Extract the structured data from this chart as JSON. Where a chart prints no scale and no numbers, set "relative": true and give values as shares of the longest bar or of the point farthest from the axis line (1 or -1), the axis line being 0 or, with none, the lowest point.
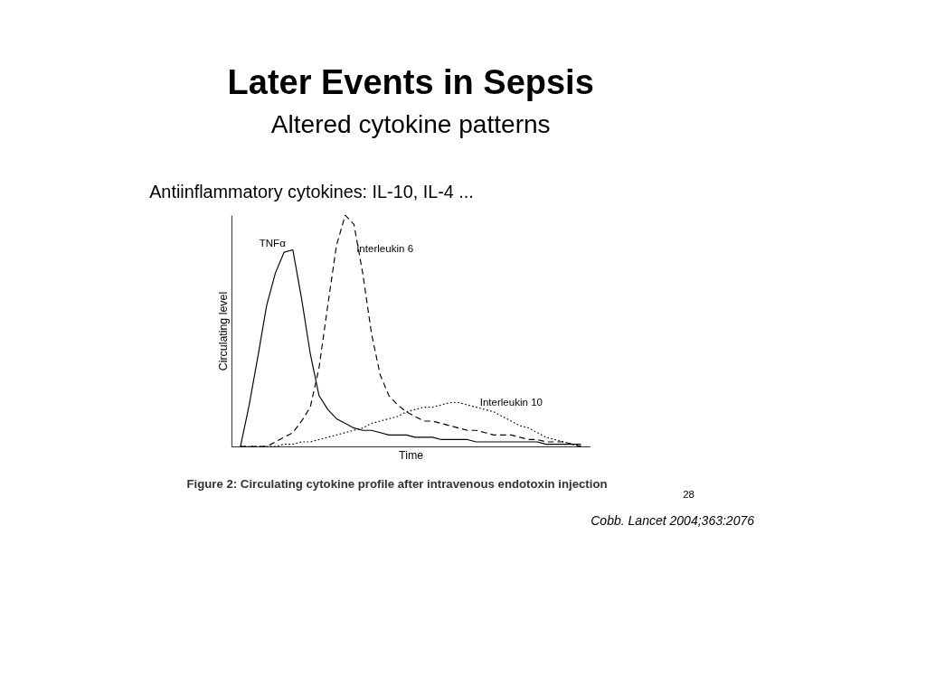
{
  "chart_data": {
    "type": "line",
    "title": "Later Events in Sepsis",
    "subtitle": "Altered cytokine patterns",
    "xlabel": "Time",
    "ylabel": "Circulating level",
    "relative": true,
    "grid": false,
    "categories": [
      null,
      null,
      null,
      null,
      null,
      null,
      null,
      null,
      null,
      null,
      null,
      null,
      null,
      null,
      null,
      null,
      null,
      null,
      null,
      null,
      null,
      null,
      null,
      null,
      null,
      null,
      null,
      null,
      null,
      null,
      null,
      null,
      null,
      null,
      null,
      null,
      null,
      null,
      null,
      null
    ],
    "series": [
      {
        "name": "TNFα",
        "color": "#000000",
        "line_style": "solid",
        "values": [
          0,
          0.18,
          0.39,
          0.61,
          0.75,
          0.84,
          0.85,
          0.64,
          0.4,
          0.22,
          0.16,
          0.12,
          0.1,
          0.08,
          0.07,
          0.07,
          0.06,
          0.05,
          0.05,
          0.05,
          0.04,
          0.04,
          0.04,
          0.03,
          0.03,
          0.03,
          0.03,
          0.02,
          0.02,
          0.02,
          0.02,
          0.02,
          0.02,
          0.02,
          0.02,
          0.01,
          0.01,
          0.01,
          0.01,
          0.01
        ]
      },
      {
        "name": "Interleukin 6",
        "color": "#000000",
        "line_style": "dashed",
        "values": [
          0,
          0,
          0,
          0,
          0.02,
          0.04,
          0.06,
          0.11,
          0.17,
          0.34,
          0.61,
          0.87,
          1,
          0.96,
          0.75,
          0.49,
          0.31,
          0.22,
          0.18,
          0.15,
          0.13,
          0.11,
          0.11,
          0.1,
          0.09,
          0.08,
          0.07,
          0.07,
          0.06,
          0.05,
          0.05,
          0.05,
          0.04,
          0.03,
          0.03,
          0.02,
          0.02,
          0.02,
          0.01,
          0
        ]
      },
      {
        "name": "Interleukin 10",
        "color": "#000000",
        "line_style": "dotted",
        "values": [
          0,
          0,
          0,
          0,
          0,
          0.01,
          0.01,
          0.02,
          0.02,
          0.03,
          0.04,
          0.05,
          0.06,
          0.07,
          0.08,
          0.1,
          0.11,
          0.12,
          0.13,
          0.15,
          0.16,
          0.17,
          0.17,
          0.18,
          0.19,
          0.19,
          0.18,
          0.17,
          0.16,
          0.15,
          0.13,
          0.11,
          0.09,
          0.08,
          0.06,
          0.04,
          0.03,
          0.02,
          0.01,
          0
        ]
      }
    ],
    "annotations": [
      "Antiinflammatory cytokines: IL-10, IL-4 ...",
      "Figure 2: Circulating cytokine profile after intravenous endotoxin injection",
      "28",
      "Cobb. Lancet 2004;363:2076"
    ]
  }
}
